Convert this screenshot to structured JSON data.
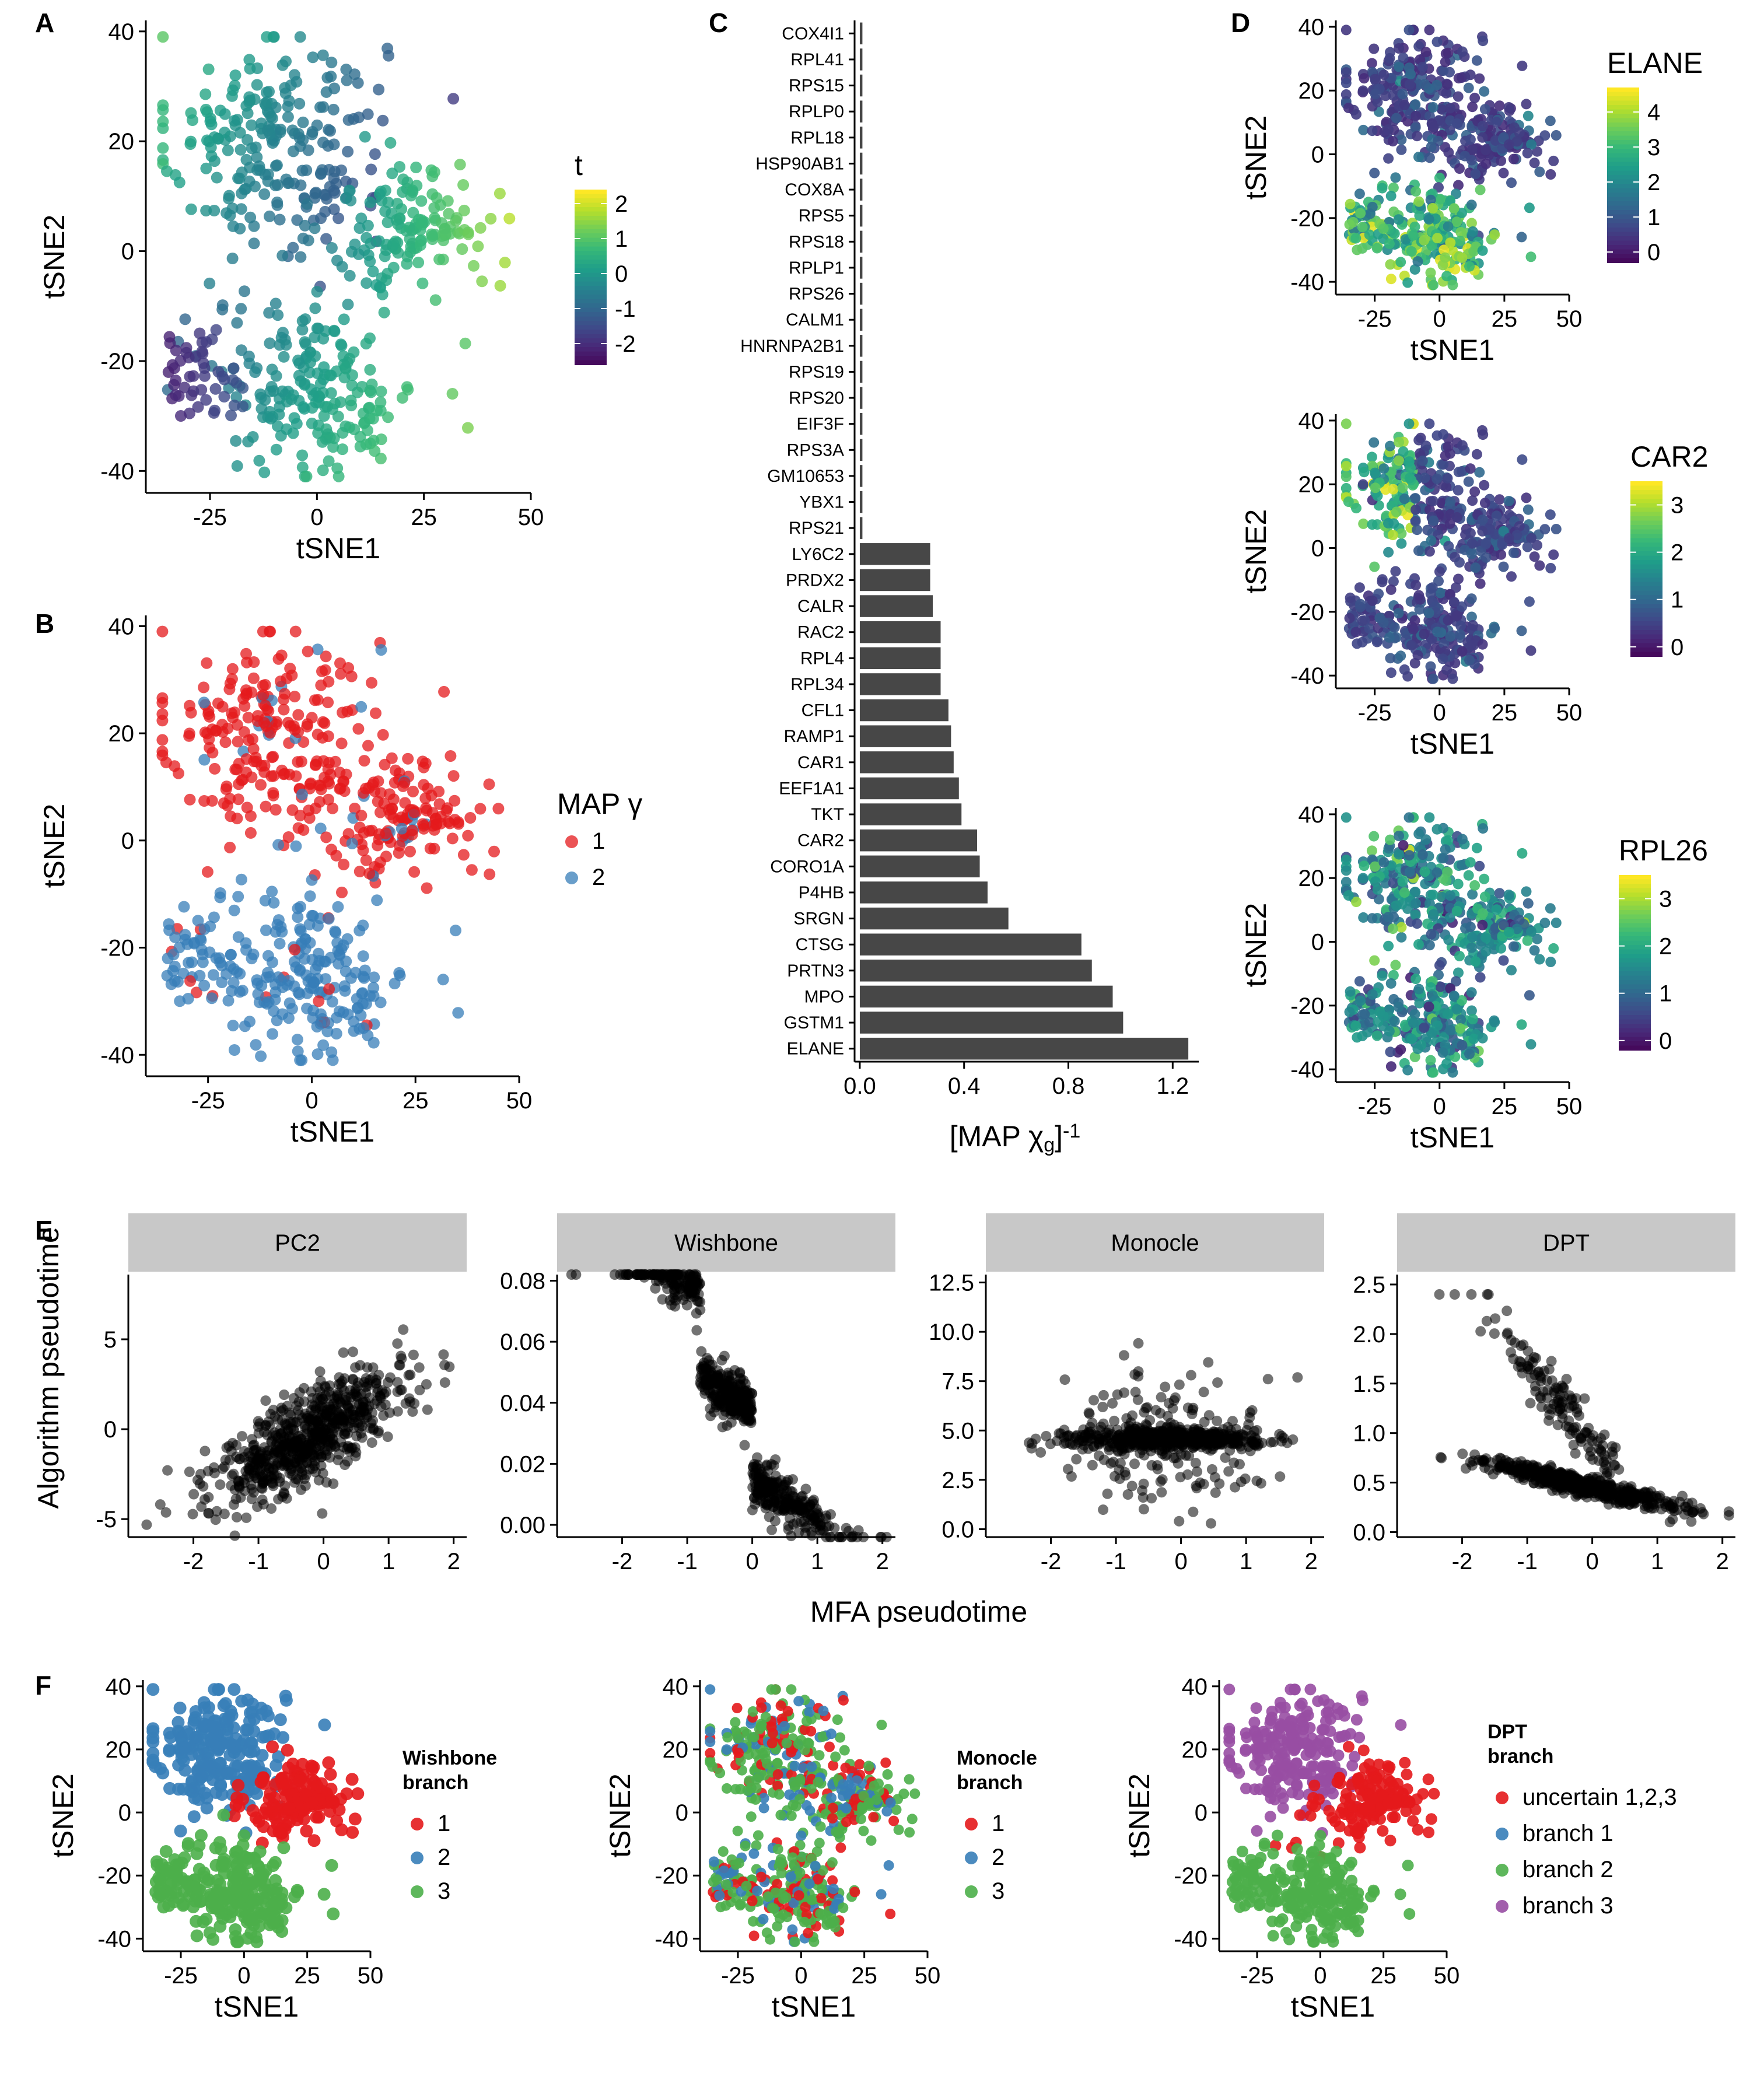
{
  "chart_data": [
    {
      "id": "A",
      "type": "scatter",
      "panel_label": "A",
      "xlabel": "tSNE1",
      "ylabel": "tSNE2",
      "xlim": [
        -40,
        50
      ],
      "ylim": [
        -44,
        42
      ],
      "xticks": [
        -25,
        0,
        25,
        50
      ],
      "yticks": [
        -40,
        -20,
        0,
        20,
        40
      ],
      "legend": {
        "title": "t",
        "type": "colorbar",
        "palette": "viridis",
        "range": [
          -2.6,
          2.4
        ],
        "ticks": [
          -2,
          -1,
          0,
          1,
          2
        ]
      },
      "point_style": "filled",
      "point_opacity": 0.8,
      "color_by": "t"
    },
    {
      "id": "B",
      "type": "scatter",
      "panel_label": "B",
      "xlabel": "tSNE1",
      "ylabel": "tSNE2",
      "xlim": [
        -40,
        50
      ],
      "ylim": [
        -44,
        42
      ],
      "xticks": [
        -25,
        0,
        25,
        50
      ],
      "yticks": [
        -40,
        -20,
        0,
        20,
        40
      ],
      "legend": {
        "title": "MAP γ",
        "type": "discrete",
        "entries": [
          "1",
          "2"
        ],
        "colors": [
          "#E41A1C",
          "#377EB8"
        ]
      },
      "point_style": "filled",
      "point_opacity": 0.75,
      "color_by": "branch2"
    },
    {
      "id": "C",
      "type": "bar",
      "orientation": "horizontal",
      "panel_label": "C",
      "xlabel": "[MAP χ",
      "xlabel_sub": "g",
      "xlabel_sup": "-1",
      "xlim": [
        -0.02,
        1.3
      ],
      "xticks": [
        "0.0",
        "0.4",
        "0.8",
        "1.2"
      ],
      "xtick_values": [
        0,
        0.4,
        0.8,
        1.2
      ],
      "bar_color": "#474747",
      "categories": [
        "COX4I1",
        "RPL41",
        "RPS15",
        "RPLP0",
        "RPL18",
        "HSP90AB1",
        "COX8A",
        "RPS5",
        "RPS18",
        "RPLP1",
        "RPS26",
        "CALM1",
        "HNRNPA2B1",
        "RPS19",
        "RPS20",
        "EIF3F",
        "RPS3A",
        "GM10653",
        "YBX1",
        "RPS21",
        "LY6C2",
        "PRDX2",
        "CALR",
        "RAC2",
        "RPL4",
        "RPL34",
        "CFL1",
        "RAMP1",
        "CAR1",
        "EEF1A1",
        "TKT",
        "CAR2",
        "CORO1A",
        "P4HB",
        "SRGN",
        "CTSG",
        "PRTN3",
        "MPO",
        "GSTM1",
        "ELANE"
      ],
      "values": [
        0.01,
        0.01,
        0.01,
        0.01,
        0.01,
        0.01,
        0.01,
        0.01,
        0.01,
        0.01,
        0.01,
        0.01,
        0.01,
        0.01,
        0.01,
        0.01,
        0.01,
        0.01,
        0.01,
        0.01,
        0.27,
        0.27,
        0.28,
        0.31,
        0.31,
        0.31,
        0.34,
        0.35,
        0.36,
        0.38,
        0.39,
        0.45,
        0.46,
        0.49,
        0.57,
        0.85,
        0.89,
        0.97,
        1.01,
        1.26
      ]
    },
    {
      "id": "D1",
      "type": "scatter",
      "panel_label": "D",
      "xlabel": "tSNE1",
      "ylabel": "tSNE2",
      "xlim": [
        -40,
        50
      ],
      "ylim": [
        -44,
        42
      ],
      "xticks": [
        -25,
        0,
        25,
        50
      ],
      "yticks": [
        -40,
        -20,
        0,
        20,
        40
      ],
      "legend": {
        "title": "ELANE",
        "type": "colorbar",
        "palette": "viridis",
        "range": [
          -0.3,
          4.7
        ],
        "ticks": [
          0,
          1,
          2,
          3,
          4
        ]
      },
      "color_by": "ELANE"
    },
    {
      "id": "D2",
      "type": "scatter",
      "xlabel": "tSNE1",
      "ylabel": "tSNE2",
      "xlim": [
        -40,
        50
      ],
      "ylim": [
        -44,
        42
      ],
      "xticks": [
        -25,
        0,
        25,
        50
      ],
      "yticks": [
        -40,
        -20,
        0,
        20,
        40
      ],
      "legend": {
        "title": "CAR2",
        "type": "colorbar",
        "palette": "viridis",
        "range": [
          -0.2,
          3.5
        ],
        "ticks": [
          0,
          1,
          2,
          3
        ]
      },
      "color_by": "CAR2"
    },
    {
      "id": "D3",
      "type": "scatter",
      "xlabel": "tSNE1",
      "ylabel": "tSNE2",
      "xlim": [
        -40,
        50
      ],
      "ylim": [
        -44,
        42
      ],
      "xticks": [
        -25,
        0,
        25,
        50
      ],
      "yticks": [
        -40,
        -20,
        0,
        20,
        40
      ],
      "legend": {
        "title": "RPL26",
        "type": "colorbar",
        "palette": "viridis",
        "range": [
          -0.2,
          3.5
        ],
        "ticks": [
          0,
          1,
          2,
          3
        ]
      },
      "color_by": "RPL26"
    },
    {
      "id": "E",
      "type": "scatter",
      "panel_label": "E",
      "facets": true,
      "xlabel": "MFA pseudotime",
      "ylabel": "Algorithm pseudotime",
      "xlim": [
        -3,
        2.2
      ],
      "xticks": [
        -2,
        -1,
        0,
        1,
        2
      ],
      "point_color": "#000000",
      "point_opacity": 0.55,
      "panels": [
        {
          "strip": "PC2",
          "ylim": [
            -6,
            8.6
          ],
          "yticks": [
            -5,
            0,
            5
          ],
          "ytick_labels": [
            "-5",
            "0",
            "5"
          ],
          "relation": "positive"
        },
        {
          "strip": "Wishbone",
          "ylim": [
            -0.004,
            0.082
          ],
          "yticks": [
            0,
            0.02,
            0.04,
            0.06,
            0.08
          ],
          "ytick_labels": [
            "0.00",
            "0.02",
            "0.04",
            "0.06",
            "0.08"
          ],
          "relation": "wishbone"
        },
        {
          "strip": "Monocle",
          "ylim": [
            -0.4,
            12.9
          ],
          "yticks": [
            0,
            2.5,
            5,
            7.5,
            10,
            12.5
          ],
          "ytick_labels": [
            "0.0",
            "2.5",
            "5.0",
            "7.5",
            "10.0",
            "12.5"
          ],
          "relation": "monocle"
        },
        {
          "strip": "DPT",
          "ylim": [
            -0.05,
            2.6
          ],
          "yticks": [
            0,
            0.5,
            1,
            1.5,
            2,
            2.5
          ],
          "ytick_labels": [
            "0.0",
            "0.5",
            "1.0",
            "1.5",
            "2.0",
            "2.5"
          ],
          "relation": "dpt"
        }
      ]
    },
    {
      "id": "F1",
      "type": "scatter",
      "panel_label": "F",
      "xlabel": "tSNE1",
      "ylabel": "tSNE2",
      "xlim": [
        -40,
        50
      ],
      "ylim": [
        -44,
        42
      ],
      "xticks": [
        -25,
        0,
        25,
        50
      ],
      "yticks": [
        -40,
        -20,
        0,
        20,
        40
      ],
      "legend": {
        "title_lines": [
          "Wishbone",
          "branch"
        ],
        "type": "discrete",
        "entries": [
          "1",
          "2",
          "3"
        ],
        "colors": [
          "#E41A1C",
          "#377EB8",
          "#4DAF4A"
        ]
      },
      "color_by": "wishbone"
    },
    {
      "id": "F2",
      "type": "scatter",
      "xlabel": "tSNE1",
      "ylabel": "tSNE2",
      "xlim": [
        -40,
        50
      ],
      "ylim": [
        -44,
        42
      ],
      "xticks": [
        -25,
        0,
        25,
        50
      ],
      "yticks": [
        -40,
        -20,
        0,
        20,
        40
      ],
      "legend": {
        "title_lines": [
          "Monocle",
          "branch"
        ],
        "type": "discrete",
        "entries": [
          "1",
          "2",
          "3"
        ],
        "colors": [
          "#E41A1C",
          "#377EB8",
          "#4DAF4A"
        ]
      },
      "color_by": "monocle"
    },
    {
      "id": "F3",
      "type": "scatter",
      "xlabel": "tSNE1",
      "ylabel": "tSNE2",
      "xlim": [
        -40,
        50
      ],
      "ylim": [
        -44,
        42
      ],
      "xticks": [
        -25,
        0,
        25,
        50
      ],
      "yticks": [
        -40,
        -20,
        0,
        20,
        40
      ],
      "legend": {
        "title_lines": [
          "DPT",
          "branch"
        ],
        "type": "discrete",
        "entries": [
          "uncertain 1,2,3",
          "branch 1",
          "branch 2",
          "branch 3"
        ],
        "colors": [
          "#E41A1C",
          "#377EB8",
          "#4DAF4A",
          "#984EA3"
        ]
      },
      "color_by": "dpt"
    }
  ]
}
